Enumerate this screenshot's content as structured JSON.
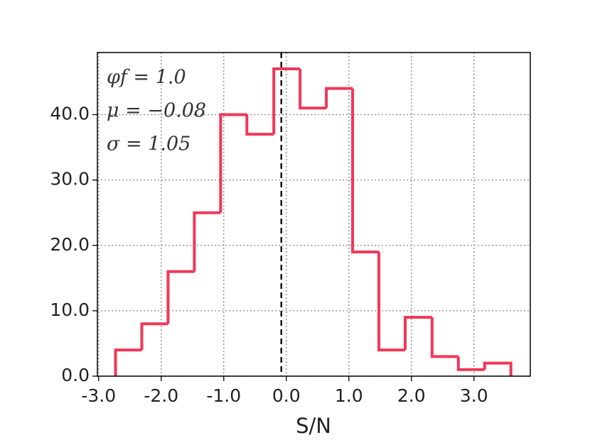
{
  "chart_data": {
    "type": "histogram",
    "xlabel": "S/N",
    "annotations": [
      "φf = 1.0",
      "μ = −0.08",
      "σ = 1.05"
    ],
    "bins": [
      -2.73,
      -2.31,
      -1.89,
      -1.47,
      -1.05,
      -0.63,
      -0.2,
      0.22,
      0.64,
      1.06,
      1.48,
      1.9,
      2.33,
      2.75,
      3.17,
      3.59
    ],
    "values": [
      4,
      8,
      16,
      25,
      40,
      37,
      47,
      41,
      44,
      19,
      4,
      9,
      3,
      1,
      2
    ],
    "color": "#f03758",
    "vline": -0.08,
    "xlim": [
      -3.02,
      3.9
    ],
    "ylim": [
      0,
      49.5
    ],
    "xticks": [
      {
        "value": -3,
        "label": "-3.0"
      },
      {
        "value": -2,
        "label": "-2.0"
      },
      {
        "value": -1,
        "label": "-1.0"
      },
      {
        "value": 0,
        "label": "0.0"
      },
      {
        "value": 1,
        "label": "1.0"
      },
      {
        "value": 2,
        "label": "2.0"
      },
      {
        "value": 3,
        "label": "3.0"
      }
    ],
    "yticks": [
      {
        "value": 0,
        "label": "0.0"
      },
      {
        "value": 10,
        "label": "10.0"
      },
      {
        "value": 20,
        "label": "20.0"
      },
      {
        "value": 30,
        "label": "30.0"
      },
      {
        "value": 40,
        "label": "40.0"
      }
    ],
    "grid": true
  }
}
